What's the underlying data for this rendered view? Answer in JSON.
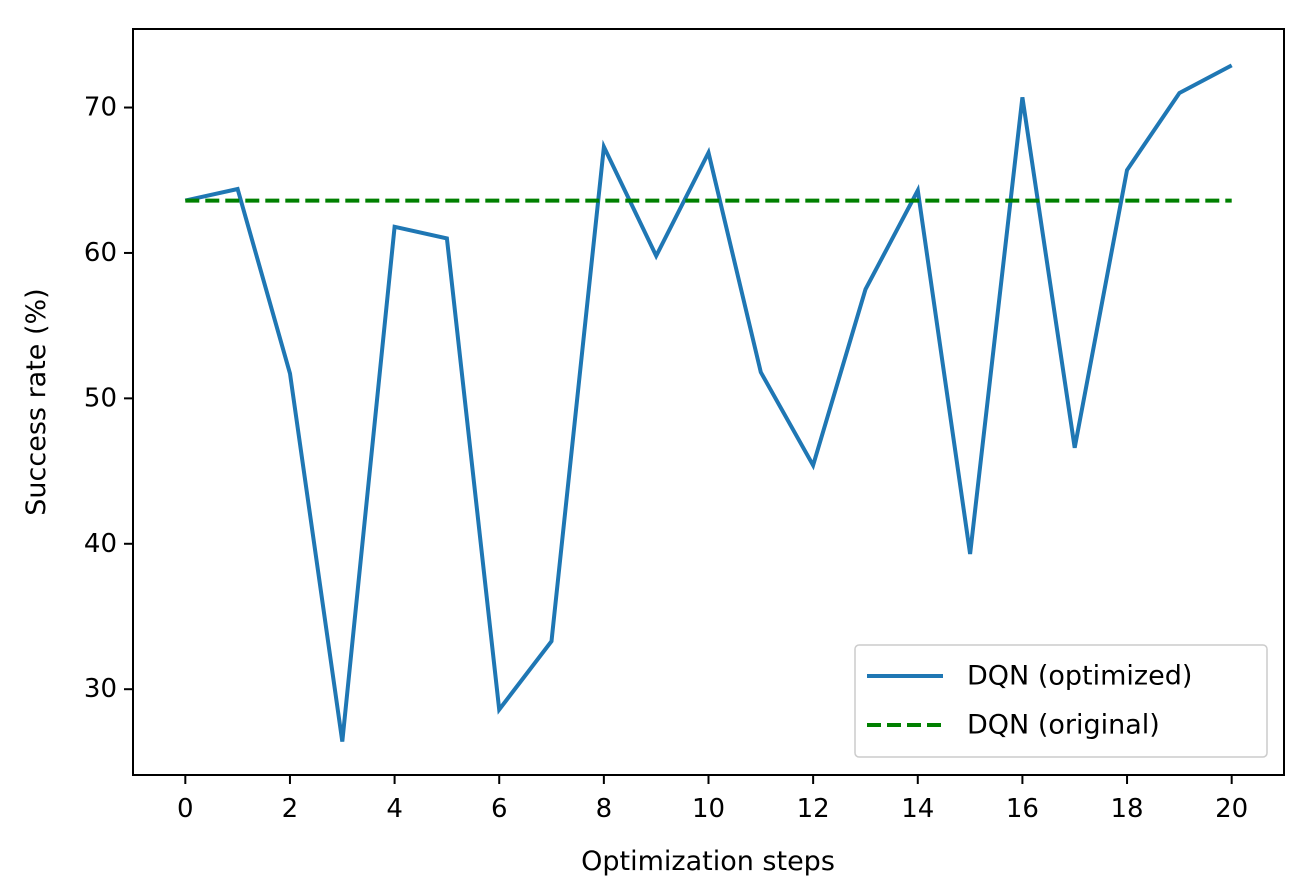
{
  "chart_data": {
    "type": "line",
    "title": "",
    "xlabel": "Optimization steps",
    "ylabel": "Success rate (%)",
    "xlim": [
      -1,
      21
    ],
    "ylim": [
      24.1,
      75.4
    ],
    "xticks": [
      0,
      2,
      4,
      6,
      8,
      10,
      12,
      14,
      16,
      18,
      20
    ],
    "yticks": [
      30,
      40,
      50,
      60,
      70
    ],
    "grid": false,
    "legend_position": "lower right",
    "x": [
      0,
      1,
      2,
      3,
      4,
      5,
      6,
      7,
      8,
      9,
      10,
      11,
      12,
      13,
      14,
      15,
      16,
      17,
      18,
      19,
      20
    ],
    "series": [
      {
        "name": "DQN (optimized)",
        "color": "#1f77b4",
        "style": "solid",
        "values": [
          63.6,
          64.4,
          51.7,
          26.4,
          61.8,
          61.0,
          28.6,
          33.3,
          67.3,
          59.8,
          66.9,
          51.8,
          45.4,
          57.5,
          64.3,
          39.3,
          70.7,
          46.6,
          65.7,
          71.0,
          72.9
        ]
      },
      {
        "name": "DQN (original)",
        "color": "#008000",
        "style": "dashed",
        "values": [
          63.6,
          63.6,
          63.6,
          63.6,
          63.6,
          63.6,
          63.6,
          63.6,
          63.6,
          63.6,
          63.6,
          63.6,
          63.6,
          63.6,
          63.6,
          63.6,
          63.6,
          63.6,
          63.6,
          63.6,
          63.6
        ]
      }
    ]
  }
}
